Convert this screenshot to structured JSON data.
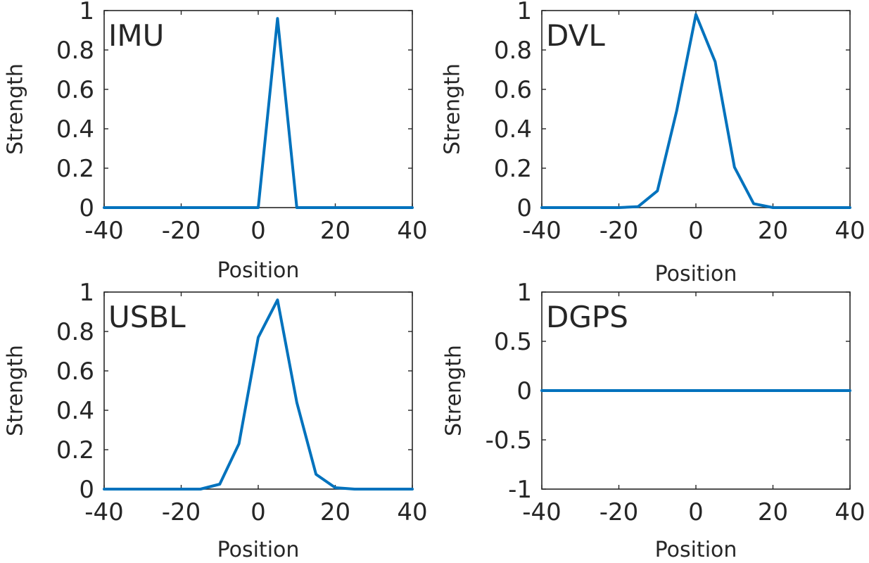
{
  "colors": {
    "series": "#0072bd",
    "axes": "#262626",
    "background": "#ffffff"
  },
  "chart_data": [
    {
      "type": "line",
      "label": "IMU",
      "xlabel": "Position",
      "ylabel": "Strength",
      "xlim": [
        -40,
        40
      ],
      "ylim": [
        0,
        1
      ],
      "xticks": [
        -40,
        -20,
        0,
        20,
        40
      ],
      "yticks": [
        0,
        0.2,
        0.4,
        0.6,
        0.8,
        1
      ],
      "xtick_labels": [
        "-40",
        "-20",
        "0",
        "20",
        "40"
      ],
      "ytick_labels": [
        "0",
        "0.2",
        "0.4",
        "0.6",
        "0.8",
        "1"
      ],
      "series": [
        {
          "x": [
            -40,
            -35,
            -30,
            -25,
            -20,
            -15,
            -10,
            -5,
            0,
            5,
            10,
            15,
            20,
            25,
            30,
            35,
            40
          ],
          "y": [
            0,
            0,
            0,
            0,
            0,
            0,
            0,
            0,
            0,
            0.96,
            0,
            0,
            0,
            0,
            0,
            0,
            0
          ]
        }
      ]
    },
    {
      "type": "line",
      "label": "DVL",
      "xlabel": "Position",
      "ylabel": "Strength",
      "xlim": [
        -40,
        40
      ],
      "ylim": [
        0,
        1
      ],
      "xticks": [
        -40,
        -20,
        0,
        20,
        40
      ],
      "yticks": [
        0,
        0.2,
        0.4,
        0.6,
        0.8,
        1
      ],
      "xtick_labels": [
        "-40",
        "-20",
        "0",
        "20",
        "40"
      ],
      "ytick_labels": [
        "0",
        "0.2",
        "0.4",
        "0.6",
        "0.8",
        "1"
      ],
      "series": [
        {
          "x": [
            -40,
            -35,
            -30,
            -25,
            -20,
            -15,
            -10,
            -5,
            0,
            5,
            10,
            15,
            20,
            25,
            30,
            35,
            40
          ],
          "y": [
            0,
            0,
            0,
            0,
            0,
            0.005,
            0.085,
            0.49,
            0.98,
            0.74,
            0.205,
            0.02,
            0,
            0,
            0,
            0,
            0
          ]
        }
      ]
    },
    {
      "type": "line",
      "label": "USBL",
      "xlabel": "Position",
      "ylabel": "Strength",
      "xlim": [
        -40,
        40
      ],
      "ylim": [
        0,
        1
      ],
      "xticks": [
        -40,
        -20,
        0,
        20,
        40
      ],
      "yticks": [
        0,
        0.2,
        0.4,
        0.6,
        0.8,
        1
      ],
      "xtick_labels": [
        "-40",
        "-20",
        "0",
        "20",
        "40"
      ],
      "ytick_labels": [
        "0",
        "0.2",
        "0.4",
        "0.6",
        "0.8",
        "1"
      ],
      "series": [
        {
          "x": [
            -40,
            -35,
            -30,
            -25,
            -20,
            -15,
            -10,
            -5,
            0,
            5,
            10,
            15,
            20,
            25,
            30,
            35,
            40
          ],
          "y": [
            0,
            0,
            0,
            0,
            0,
            0,
            0.025,
            0.23,
            0.77,
            0.96,
            0.44,
            0.075,
            0.007,
            0,
            0,
            0,
            0
          ]
        }
      ]
    },
    {
      "type": "line",
      "label": "DGPS",
      "xlabel": "Position",
      "ylabel": "Strength",
      "xlim": [
        -40,
        40
      ],
      "ylim": [
        -1,
        1
      ],
      "xticks": [
        -40,
        -20,
        0,
        20,
        40
      ],
      "yticks": [
        -1,
        -0.5,
        0,
        0.5,
        1
      ],
      "xtick_labels": [
        "-40",
        "-20",
        "0",
        "20",
        "40"
      ],
      "ytick_labels": [
        "-1",
        "-0.5",
        "0",
        "0.5",
        "1"
      ],
      "series": [
        {
          "x": [
            -40,
            -35,
            -30,
            -25,
            -20,
            -15,
            -10,
            -5,
            0,
            5,
            10,
            15,
            20,
            25,
            30,
            35,
            40
          ],
          "y": [
            0,
            0,
            0,
            0,
            0,
            0,
            0,
            0,
            0,
            0,
            0,
            0,
            0,
            0,
            0,
            0,
            0
          ]
        }
      ]
    }
  ]
}
